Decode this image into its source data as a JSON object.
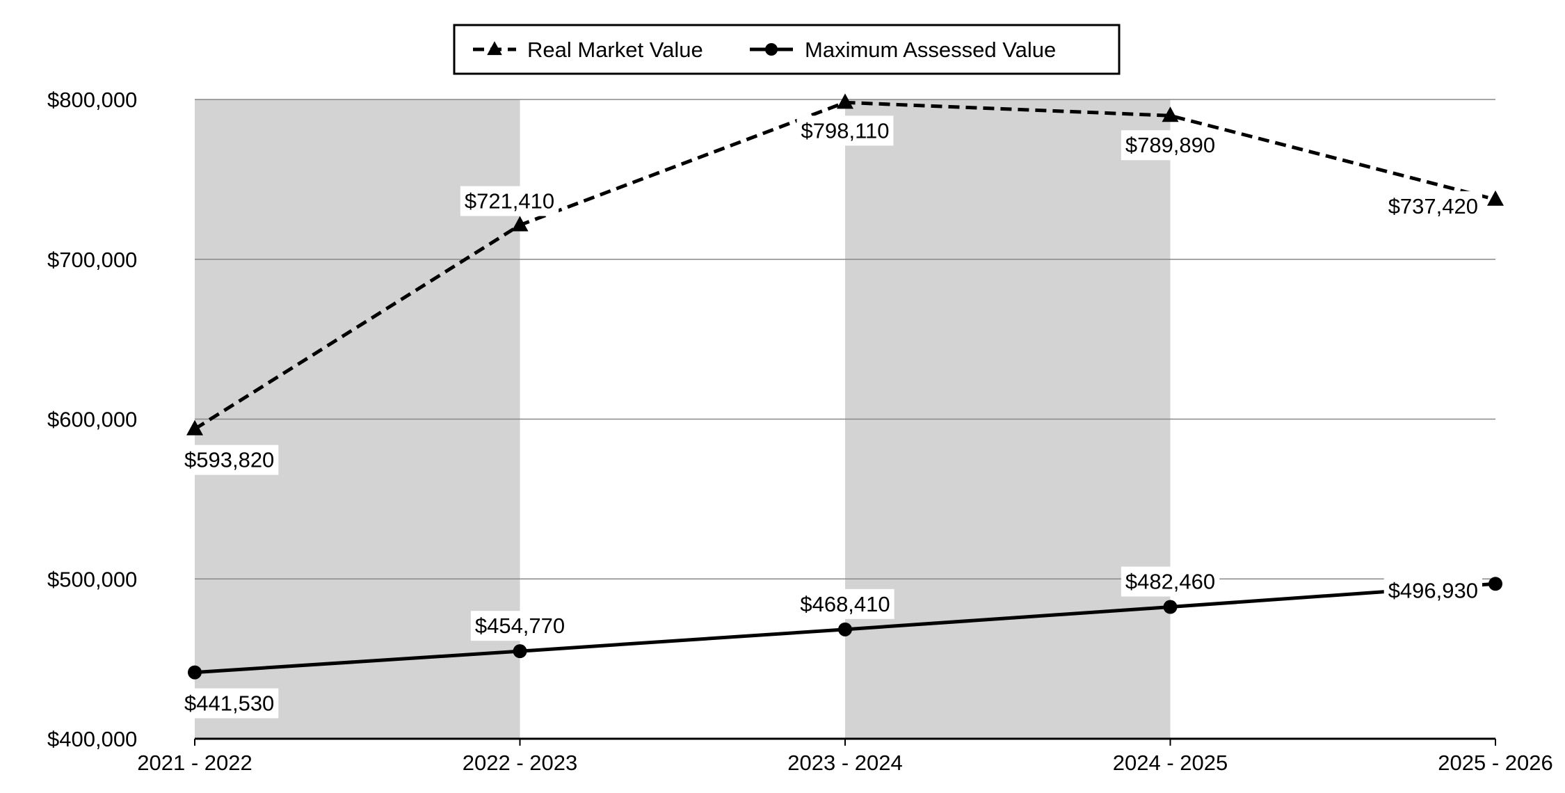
{
  "chart_data": {
    "type": "line",
    "title": "",
    "xlabel": "",
    "ylabel": "",
    "categories": [
      "2021 - 2022",
      "2022 - 2023",
      "2023 - 2024",
      "2024 - 2025",
      "2025 - 2026"
    ],
    "ylim": [
      400000,
      800000
    ],
    "yticks": [
      400000,
      500000,
      600000,
      700000,
      800000
    ],
    "ytick_labels": [
      "$400,000",
      "$500,000",
      "$600,000",
      "$700,000",
      "$800,000"
    ],
    "grid": true,
    "shaded_bands": [
      [
        "2021 - 2022",
        "2022 - 2023"
      ],
      [
        "2023 - 2024",
        "2024 - 2025"
      ]
    ],
    "legend_position": "top-center",
    "series": [
      {
        "name": "Real Market Value",
        "style": "dashed",
        "marker": "triangle",
        "values": [
          593820,
          721410,
          798110,
          789890,
          737420
        ],
        "labels": [
          "$593,820",
          "$721,410",
          "$798,110",
          "$789,890",
          "$737,420"
        ]
      },
      {
        "name": "Maximum Assessed Value",
        "style": "solid",
        "marker": "circle",
        "values": [
          441530,
          454770,
          468410,
          482460,
          496930
        ],
        "labels": [
          "$441,530",
          "$454,770",
          "$468,410",
          "$482,460",
          "$496,930"
        ]
      }
    ],
    "colors": {
      "line": "#000000",
      "band": "#d3d3d3",
      "grid": "#888888",
      "background": "#ffffff"
    }
  }
}
